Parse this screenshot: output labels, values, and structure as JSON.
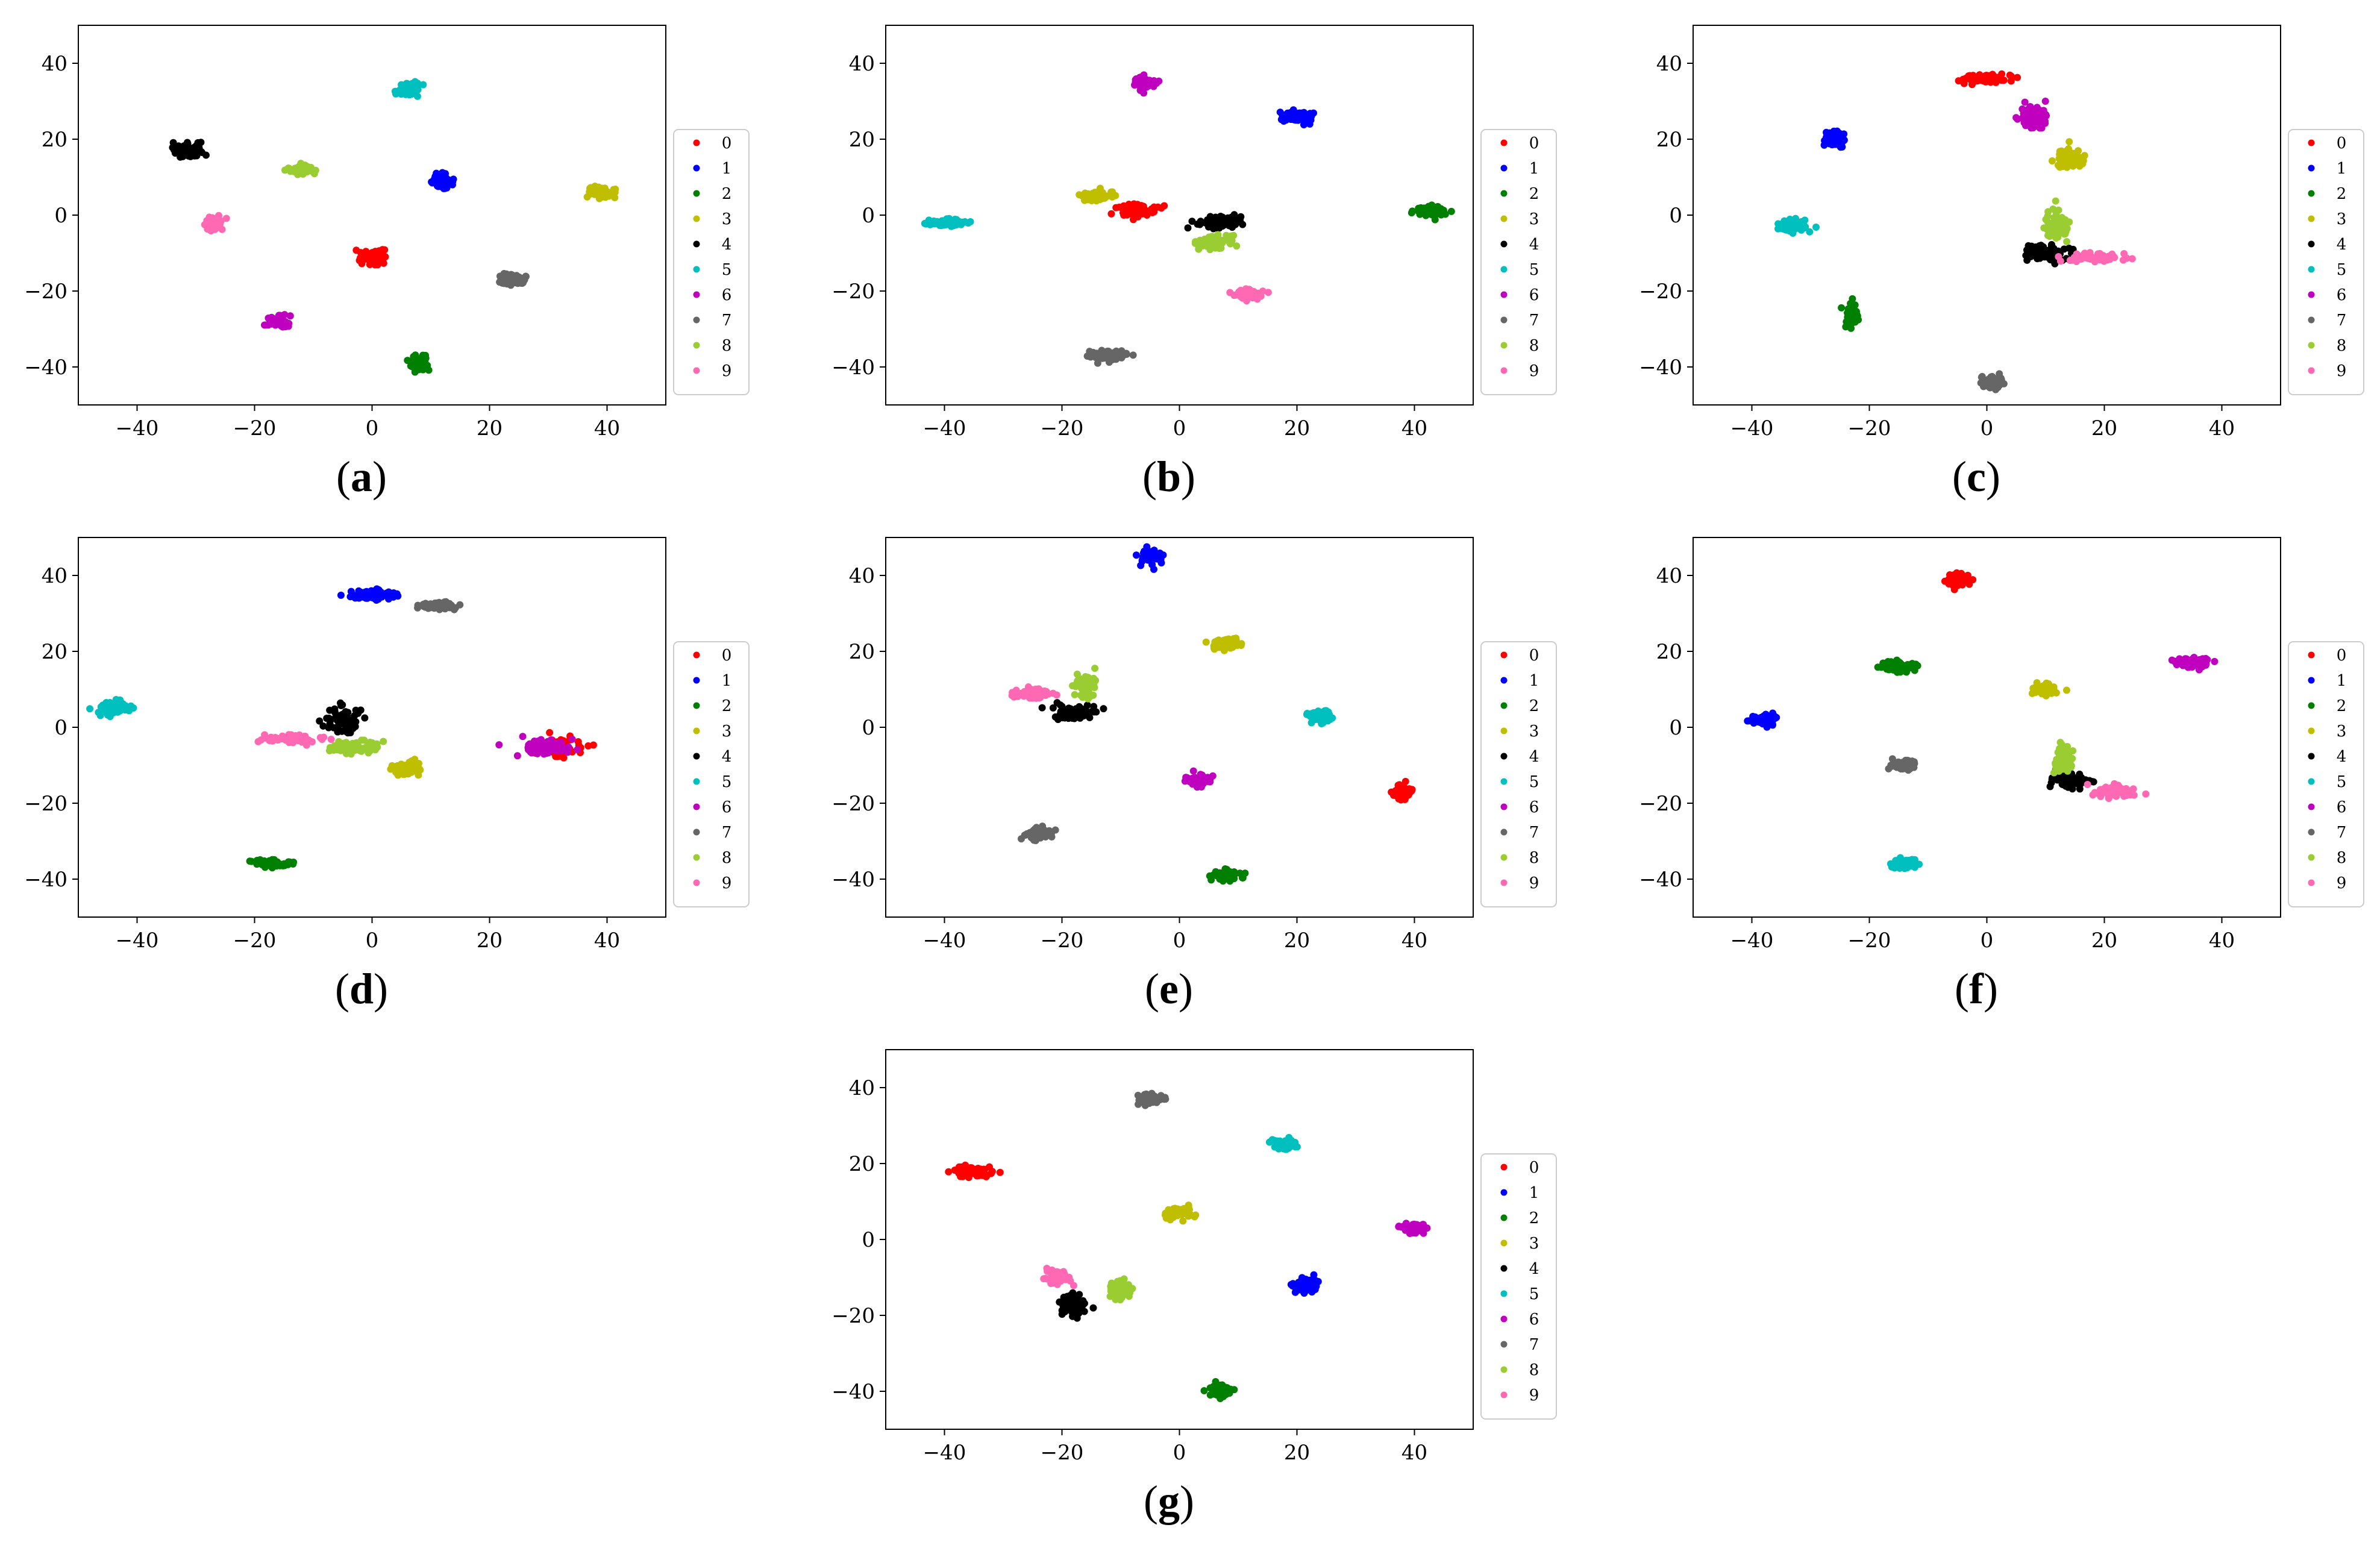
{
  "figure": {
    "caption_open": "(",
    "caption_close": ")"
  },
  "colors": {
    "0": "#ff0000",
    "1": "#0000ff",
    "2": "#008000",
    "3": "#bfbf00",
    "4": "#000000",
    "5": "#00bfbf",
    "6": "#bf00bf",
    "7": "#666666",
    "8": "#9acd32",
    "9": "#ff69b4"
  },
  "chart_data": [
    {
      "type": "scatter",
      "label": "a",
      "xlim": [
        -50,
        50
      ],
      "ylim": [
        -50,
        50
      ],
      "xticks": [
        -40,
        -20,
        0,
        20,
        40
      ],
      "yticks": [
        -40,
        -20,
        0,
        20,
        40
      ],
      "legend": [
        "0",
        "1",
        "2",
        "3",
        "4",
        "5",
        "6",
        "7",
        "8",
        "9"
      ],
      "clusters": [
        {
          "class": "0",
          "x": 0,
          "y": -11,
          "spread": [
            2,
            1.5
          ]
        },
        {
          "class": "1",
          "x": 12,
          "y": 9,
          "spread": [
            1.5,
            1.5
          ]
        },
        {
          "class": "2",
          "x": 8,
          "y": -39,
          "spread": [
            1.3,
            1.5
          ]
        },
        {
          "class": "3",
          "x": 39,
          "y": 6,
          "spread": [
            1.8,
            1.2
          ]
        },
        {
          "class": "4",
          "x": -31,
          "y": 17,
          "spread": [
            2.5,
            1.5
          ]
        },
        {
          "class": "5",
          "x": 6,
          "y": 33,
          "spread": [
            1.5,
            1.5
          ]
        },
        {
          "class": "6",
          "x": -16,
          "y": -28,
          "spread": [
            1.5,
            1.2
          ]
        },
        {
          "class": "7",
          "x": 24,
          "y": -17,
          "spread": [
            2,
            1.2
          ]
        },
        {
          "class": "8",
          "x": -12,
          "y": 12,
          "spread": [
            1.8,
            1.2
          ]
        },
        {
          "class": "9",
          "x": -27,
          "y": -2,
          "spread": [
            1.3,
            1.5
          ]
        }
      ]
    },
    {
      "type": "scatter",
      "label": "b",
      "xlim": [
        -50,
        50
      ],
      "ylim": [
        -50,
        50
      ],
      "xticks": [
        -40,
        -20,
        0,
        20,
        40
      ],
      "yticks": [
        -40,
        -20,
        0,
        20,
        40
      ],
      "legend": [
        "0",
        "1",
        "2",
        "3",
        "4",
        "5",
        "6",
        "7",
        "8",
        "9"
      ],
      "clusters": [
        {
          "class": "0",
          "x": -7,
          "y": 1,
          "spread": [
            2.5,
            1.5
          ]
        },
        {
          "class": "1",
          "x": 20,
          "y": 26,
          "spread": [
            2,
            1.2
          ]
        },
        {
          "class": "2",
          "x": 43,
          "y": 1,
          "spread": [
            2.5,
            1.2
          ]
        },
        {
          "class": "3",
          "x": -14,
          "y": 5,
          "spread": [
            2.5,
            1.2
          ]
        },
        {
          "class": "4",
          "x": 7,
          "y": -2,
          "spread": [
            3,
            1.5
          ]
        },
        {
          "class": "5",
          "x": -40,
          "y": -2,
          "spread": [
            3,
            0.8
          ]
        },
        {
          "class": "6",
          "x": -6,
          "y": 35,
          "spread": [
            1.8,
            1.2
          ]
        },
        {
          "class": "7",
          "x": -12,
          "y": -37,
          "spread": [
            3,
            1
          ]
        },
        {
          "class": "8",
          "x": 6,
          "y": -7,
          "spread": [
            3,
            1.5
          ]
        },
        {
          "class": "9",
          "x": 12,
          "y": -21,
          "spread": [
            2,
            1.2
          ]
        }
      ]
    },
    {
      "type": "scatter",
      "label": "c",
      "xlim": [
        -50,
        50
      ],
      "ylim": [
        -50,
        50
      ],
      "xticks": [
        -40,
        -20,
        0,
        20,
        40
      ],
      "yticks": [
        -40,
        -20,
        0,
        20,
        40
      ],
      "legend": [
        "0",
        "1",
        "2",
        "3",
        "4",
        "5",
        "6",
        "7",
        "8",
        "9"
      ],
      "clusters": [
        {
          "class": "0",
          "x": 0,
          "y": 36,
          "spread": [
            3.5,
            1
          ]
        },
        {
          "class": "1",
          "x": -26,
          "y": 20,
          "spread": [
            1.5,
            2
          ]
        },
        {
          "class": "2",
          "x": -23,
          "y": -26,
          "spread": [
            1,
            2.5
          ]
        },
        {
          "class": "3",
          "x": 14,
          "y": 15,
          "spread": [
            2,
            2
          ]
        },
        {
          "class": "4",
          "x": 10,
          "y": -10,
          "spread": [
            3.5,
            2
          ]
        },
        {
          "class": "5",
          "x": -33,
          "y": -3,
          "spread": [
            2,
            1.5
          ]
        },
        {
          "class": "6",
          "x": 8,
          "y": 26,
          "spread": [
            2,
            2.5
          ]
        },
        {
          "class": "7",
          "x": 1,
          "y": -44,
          "spread": [
            1.5,
            1.5
          ]
        },
        {
          "class": "8",
          "x": 12,
          "y": -3,
          "spread": [
            1.5,
            4
          ]
        },
        {
          "class": "9",
          "x": 18,
          "y": -11,
          "spread": [
            4,
            1
          ]
        }
      ]
    },
    {
      "type": "scatter",
      "label": "d",
      "xlim": [
        -50,
        50
      ],
      "ylim": [
        -50,
        50
      ],
      "xticks": [
        -40,
        -20,
        0,
        20,
        40
      ],
      "yticks": [
        -40,
        -20,
        0,
        20,
        40
      ],
      "legend": [
        "0",
        "1",
        "2",
        "3",
        "4",
        "5",
        "6",
        "7",
        "8",
        "9"
      ],
      "clusters": [
        {
          "class": "0",
          "x": 32,
          "y": -5,
          "spread": [
            3.5,
            2
          ]
        },
        {
          "class": "1",
          "x": 0,
          "y": 35,
          "spread": [
            3,
            1.2
          ]
        },
        {
          "class": "2",
          "x": -17,
          "y": -36,
          "spread": [
            3.5,
            0.8
          ]
        },
        {
          "class": "3",
          "x": 6,
          "y": -11,
          "spread": [
            2,
            1.5
          ]
        },
        {
          "class": "4",
          "x": -5,
          "y": 2,
          "spread": [
            2.5,
            3
          ]
        },
        {
          "class": "5",
          "x": -44,
          "y": 5,
          "spread": [
            2.5,
            1.5
          ]
        },
        {
          "class": "6",
          "x": 29,
          "y": -5,
          "spread": [
            3.5,
            1.5
          ]
        },
        {
          "class": "7",
          "x": 11,
          "y": 32,
          "spread": [
            3,
            0.8
          ]
        },
        {
          "class": "8",
          "x": -3,
          "y": -5,
          "spread": [
            4,
            1.5
          ]
        },
        {
          "class": "9",
          "x": -13,
          "y": -3,
          "spread": [
            4,
            1
          ]
        }
      ]
    },
    {
      "type": "scatter",
      "label": "e",
      "xlim": [
        -50,
        50
      ],
      "ylim": [
        -50,
        50
      ],
      "xticks": [
        -40,
        -20,
        0,
        20,
        40
      ],
      "yticks": [
        -40,
        -20,
        0,
        20,
        40
      ],
      "legend": [
        "0",
        "1",
        "2",
        "3",
        "4",
        "5",
        "6",
        "7",
        "8",
        "9"
      ],
      "clusters": [
        {
          "class": "0",
          "x": 38,
          "y": -17,
          "spread": [
            1.2,
            1.5
          ]
        },
        {
          "class": "1",
          "x": -5,
          "y": 45,
          "spread": [
            1.5,
            1.5
          ]
        },
        {
          "class": "2",
          "x": 8,
          "y": -39,
          "spread": [
            1.8,
            1.2
          ]
        },
        {
          "class": "3",
          "x": 8,
          "y": 22,
          "spread": [
            1.8,
            1.2
          ]
        },
        {
          "class": "4",
          "x": -18,
          "y": 4,
          "spread": [
            3,
            1.5
          ]
        },
        {
          "class": "5",
          "x": 24,
          "y": 3,
          "spread": [
            1.5,
            1.2
          ]
        },
        {
          "class": "6",
          "x": 3,
          "y": -14,
          "spread": [
            1.8,
            1.2
          ]
        },
        {
          "class": "7",
          "x": -24,
          "y": -28,
          "spread": [
            1.8,
            1.2
          ]
        },
        {
          "class": "8",
          "x": -16,
          "y": 11,
          "spread": [
            1.5,
            2.5
          ]
        },
        {
          "class": "9",
          "x": -25,
          "y": 9,
          "spread": [
            2.5,
            1
          ]
        }
      ]
    },
    {
      "type": "scatter",
      "label": "f",
      "xlim": [
        -50,
        50
      ],
      "ylim": [
        -50,
        50
      ],
      "xticks": [
        -40,
        -20,
        0,
        20,
        40
      ],
      "yticks": [
        -40,
        -20,
        0,
        20,
        40
      ],
      "legend": [
        "0",
        "1",
        "2",
        "3",
        "4",
        "5",
        "6",
        "7",
        "8",
        "9"
      ],
      "clusters": [
        {
          "class": "0",
          "x": -5,
          "y": 39,
          "spread": [
            1.5,
            1.5
          ]
        },
        {
          "class": "1",
          "x": -38,
          "y": 2,
          "spread": [
            2,
            1.2
          ]
        },
        {
          "class": "2",
          "x": -15,
          "y": 16,
          "spread": [
            2.5,
            1.2
          ]
        },
        {
          "class": "3",
          "x": 10,
          "y": 10,
          "spread": [
            1.8,
            1.2
          ]
        },
        {
          "class": "4",
          "x": 14,
          "y": -14,
          "spread": [
            2.5,
            2
          ]
        },
        {
          "class": "5",
          "x": -14,
          "y": -36,
          "spread": [
            2,
            1.2
          ]
        },
        {
          "class": "6",
          "x": 35,
          "y": 17,
          "spread": [
            2.5,
            1
          ]
        },
        {
          "class": "7",
          "x": -14,
          "y": -10,
          "spread": [
            1.5,
            1.2
          ]
        },
        {
          "class": "8",
          "x": 13,
          "y": -8,
          "spread": [
            1.5,
            3
          ]
        },
        {
          "class": "9",
          "x": 22,
          "y": -17,
          "spread": [
            3,
            1.2
          ]
        }
      ]
    },
    {
      "type": "scatter",
      "label": "g",
      "xlim": [
        -50,
        50
      ],
      "ylim": [
        -50,
        50
      ],
      "xticks": [
        -40,
        -20,
        0,
        20,
        40
      ],
      "yticks": [
        -40,
        -20,
        0,
        20,
        40
      ],
      "legend": [
        "0",
        "1",
        "2",
        "3",
        "4",
        "5",
        "6",
        "7",
        "8",
        "9"
      ],
      "clusters": [
        {
          "class": "0",
          "x": -35,
          "y": 18,
          "spread": [
            2.5,
            1.2
          ]
        },
        {
          "class": "1",
          "x": 21,
          "y": -12,
          "spread": [
            1.5,
            1.5
          ]
        },
        {
          "class": "2",
          "x": 7,
          "y": -40,
          "spread": [
            1.8,
            1.2
          ]
        },
        {
          "class": "3",
          "x": 0,
          "y": 7,
          "spread": [
            1.8,
            1.2
          ]
        },
        {
          "class": "4",
          "x": -18,
          "y": -17,
          "spread": [
            2,
            2
          ]
        },
        {
          "class": "5",
          "x": 18,
          "y": 25,
          "spread": [
            1.8,
            1.2
          ]
        },
        {
          "class": "6",
          "x": 40,
          "y": 3,
          "spread": [
            2,
            1
          ]
        },
        {
          "class": "7",
          "x": -5,
          "y": 37,
          "spread": [
            1.8,
            1
          ]
        },
        {
          "class": "8",
          "x": -10,
          "y": -13,
          "spread": [
            1.5,
            2
          ]
        },
        {
          "class": "9",
          "x": -21,
          "y": -10,
          "spread": [
            1.8,
            1.5
          ]
        }
      ]
    }
  ]
}
